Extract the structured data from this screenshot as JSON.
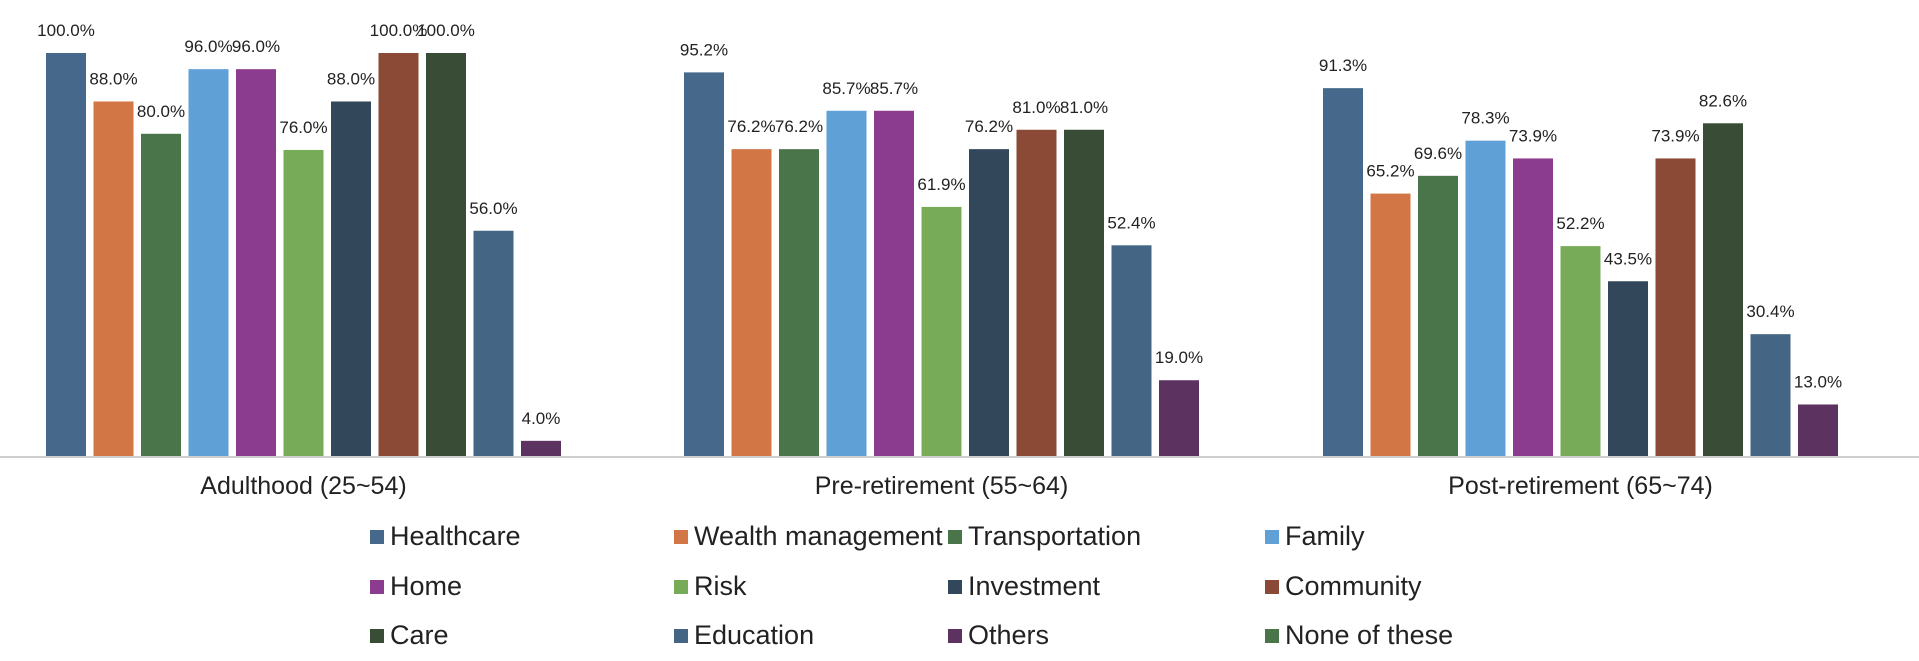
{
  "chart_data": {
    "type": "bar",
    "categories": [
      "Adulthood (25~54)",
      "Pre-retirement (55~64)",
      "Post-retirement (65~74)"
    ],
    "ylim": [
      0,
      100
    ],
    "grid": false,
    "legend_position": "bottom",
    "series": [
      {
        "name": "Healthcare",
        "color": "#46688a",
        "values": [
          100.0,
          95.2,
          91.3
        ],
        "labels": [
          "100.0%",
          "95.2%",
          "91.3%"
        ]
      },
      {
        "name": "Wealth management",
        "color": "#d27645",
        "values": [
          88.0,
          76.2,
          65.2
        ],
        "labels": [
          "88.0%",
          "76.2%",
          "65.2%"
        ]
      },
      {
        "name": "Transportation",
        "color": "#4a7449",
        "values": [
          80.0,
          76.2,
          69.6
        ],
        "labels": [
          "80.0%",
          "76.2%",
          "69.6%"
        ]
      },
      {
        "name": "Family",
        "color": "#5fa1d7",
        "values": [
          96.0,
          85.7,
          78.3
        ],
        "labels": [
          "96.0%",
          "85.7%",
          "78.3%"
        ]
      },
      {
        "name": "Home",
        "color": "#8c3c8e",
        "values": [
          96.0,
          85.7,
          73.9
        ],
        "labels": [
          "96.0%",
          "85.7%",
          "73.9%"
        ]
      },
      {
        "name": "Risk",
        "color": "#77ab58",
        "values": [
          76.0,
          61.9,
          52.2
        ],
        "labels": [
          "76.0%",
          "61.9%",
          "52.2%"
        ]
      },
      {
        "name": "Investment",
        "color": "#33475a",
        "values": [
          88.0,
          76.2,
          43.5
        ],
        "labels": [
          "88.0%",
          "76.2%",
          "43.5%"
        ]
      },
      {
        "name": "Community",
        "color": "#8a4a36",
        "values": [
          100.0,
          81.0,
          73.9
        ],
        "labels": [
          "100.0%",
          "81.0%",
          "73.9%"
        ]
      },
      {
        "name": "Care",
        "color": "#384c36",
        "values": [
          100.0,
          81.0,
          82.6
        ],
        "labels": [
          "100.0%",
          "81.0%",
          "82.6%"
        ]
      },
      {
        "name": "Education",
        "color": "#446584",
        "values": [
          56.0,
          52.4,
          30.4
        ],
        "labels": [
          "56.0%",
          "52.4%",
          "30.4%"
        ]
      },
      {
        "name": "Others",
        "color": "#5c3260",
        "values": [
          4.0,
          19.0,
          13.0
        ],
        "labels": [
          "4.0%",
          "19.0%",
          "13.0%"
        ]
      },
      {
        "name": "None of these",
        "color": "#4a7449",
        "values": [
          0,
          0,
          0
        ],
        "labels": [
          "",
          "",
          ""
        ]
      }
    ]
  }
}
